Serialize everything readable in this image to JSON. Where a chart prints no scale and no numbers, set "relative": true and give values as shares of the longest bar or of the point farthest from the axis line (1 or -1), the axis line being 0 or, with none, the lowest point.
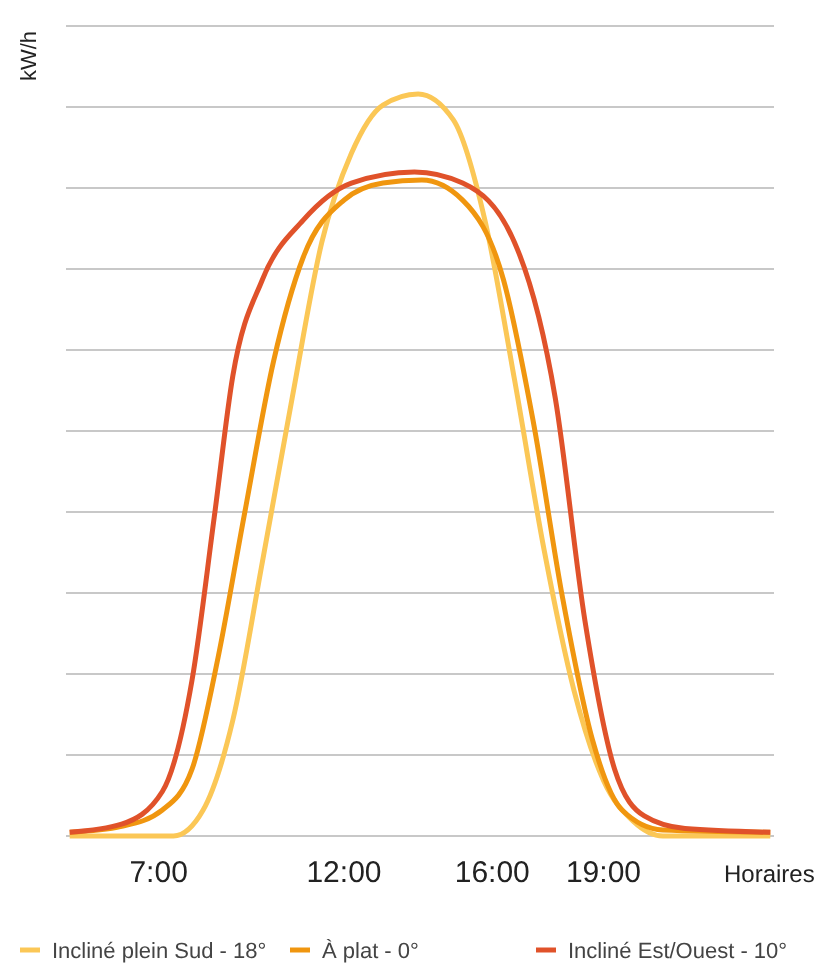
{
  "chart_data": {
    "type": "line",
    "relative": true,
    "ylabel": "kW/h",
    "xlabel": "Horaires",
    "xlim": [
      4.5,
      23.6
    ],
    "xticks": [
      {
        "value": 7,
        "label": "7:00"
      },
      {
        "value": 12,
        "label": "12:00"
      },
      {
        "value": 16,
        "label": "16:00"
      },
      {
        "value": 19,
        "label": "19:00"
      }
    ],
    "grid": "y",
    "legend": "bottom",
    "marker": "none",
    "line_style": "solid",
    "series": [
      {
        "name": "Incliné plein Sud - 18°",
        "color": "#fbc756",
        "x": [
          4.6,
          7.4,
          8.2,
          9.0,
          9.8,
          10.6,
          11.4,
          12.2,
          13.05,
          14.0,
          14.95,
          15.8,
          16.6,
          17.4,
          18.2,
          19.0,
          19.8,
          20.6,
          23.5
        ],
        "values": [
          0,
          0,
          0.035,
          0.156,
          0.37,
          0.59,
          0.8,
          0.92,
          0.985,
          1,
          0.965,
          0.83,
          0.615,
          0.385,
          0.197,
          0.075,
          0.02,
          0,
          0
        ]
      },
      {
        "name": "À plat - 0°",
        "color": "#f0960f",
        "x": [
          4.6,
          6.0,
          7.1,
          7.9,
          8.6,
          9.3,
          10.1,
          10.9,
          12.0,
          13.05,
          14.1,
          15.2,
          16.3,
          17.1,
          17.9,
          18.7,
          19.5,
          20.6,
          23.5
        ],
        "values": [
          0.005,
          0.013,
          0.035,
          0.09,
          0.24,
          0.43,
          0.64,
          0.78,
          0.857,
          0.88,
          0.884,
          0.857,
          0.75,
          0.56,
          0.32,
          0.13,
          0.035,
          0.008,
          0.005
        ]
      },
      {
        "name": "Incliné Est/Ouest - 10°",
        "color": "#e0522a",
        "x": [
          4.6,
          6.0,
          7.1,
          7.9,
          8.5,
          9.0,
          9.8,
          10.9,
          12.2,
          13.9,
          15.2,
          16.6,
          17.7,
          18.5,
          19.3,
          20.1,
          21.2,
          23.5
        ],
        "values": [
          0.005,
          0.016,
          0.06,
          0.21,
          0.43,
          0.62,
          0.75,
          0.83,
          0.88,
          0.895,
          0.88,
          0.8,
          0.59,
          0.29,
          0.09,
          0.027,
          0.01,
          0.005
        ]
      }
    ]
  }
}
